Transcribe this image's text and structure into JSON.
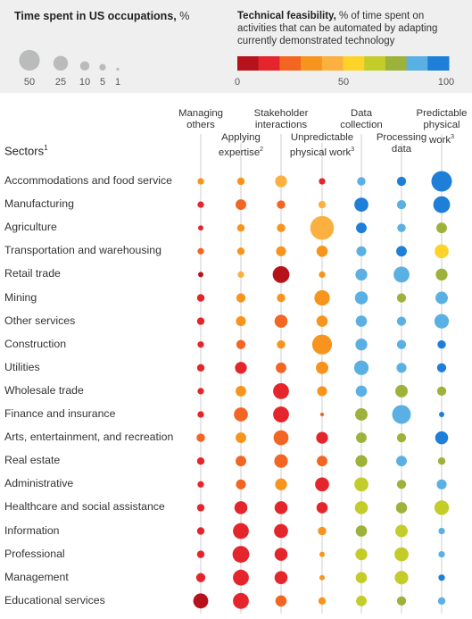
{
  "legend": {
    "size_title_bold": "Time spent in US occupations,",
    "size_title_rest": " %",
    "size_values": [
      50,
      25,
      10,
      5,
      1
    ],
    "color_title_bold": "Technical feasibility,",
    "color_title_rest": " % of time spent on activities that can be automated by adapting currently demonstrated technology",
    "color_steps": [
      "#b5121b",
      "#e4262c",
      "#f26522",
      "#f7941d",
      "#fbb040",
      "#fdd32a",
      "#c4cc2a",
      "#9cb23b",
      "#5bb0e3",
      "#1e7ed8"
    ],
    "scale_labels": [
      "0",
      "50",
      "100"
    ]
  },
  "sectors_header": "Sectors",
  "sectors_header_sup": "1",
  "columns": [
    {
      "label": "Managing\nothers",
      "sup": ""
    },
    {
      "label": "Applying\nexpertise",
      "sup": "2"
    },
    {
      "label": "Stakeholder\ninteractions",
      "sup": ""
    },
    {
      "label": "Unpredictable\nphysical work",
      "sup": "3"
    },
    {
      "label": "Data\ncollection",
      "sup": ""
    },
    {
      "label": "Processing\ndata",
      "sup": ""
    },
    {
      "label": "Predictable\nphysical\nwork",
      "sup": "3"
    }
  ],
  "chart_data": {
    "type": "bubble-matrix",
    "size_metric": "Time spent in US occupations, %",
    "color_metric": "Technical feasibility, %",
    "rows": [
      {
        "sector": "Accommodations and food service",
        "time": [
          3,
          4,
          10,
          3,
          5,
          6,
          30
        ],
        "feasibility": [
          30,
          35,
          45,
          10,
          80,
          90,
          100
        ]
      },
      {
        "sector": "Manufacturing",
        "time": [
          3,
          8,
          5,
          4,
          14,
          6,
          20
        ],
        "feasibility": [
          10,
          20,
          20,
          40,
          90,
          80,
          90
        ]
      },
      {
        "sector": "Agriculture",
        "time": [
          2,
          4,
          5,
          40,
          8,
          5,
          8
        ],
        "feasibility": [
          10,
          30,
          30,
          45,
          90,
          80,
          70
        ]
      },
      {
        "sector": "Transportation and warehousing",
        "time": [
          3,
          4,
          7,
          9,
          7,
          8,
          14
        ],
        "feasibility": [
          25,
          35,
          35,
          38,
          85,
          90,
          50
        ]
      },
      {
        "sector": "Retail trade",
        "time": [
          2,
          3,
          20,
          3,
          10,
          18,
          10
        ],
        "feasibility": [
          5,
          40,
          5,
          35,
          80,
          80,
          75
        ]
      },
      {
        "sector": "Mining",
        "time": [
          4,
          6,
          5,
          17,
          12,
          6,
          11
        ],
        "feasibility": [
          15,
          30,
          30,
          35,
          80,
          70,
          80
        ]
      },
      {
        "sector": "Other services",
        "time": [
          4,
          7,
          12,
          9,
          9,
          6,
          15
        ],
        "feasibility": [
          10,
          30,
          20,
          35,
          80,
          80,
          80
        ]
      },
      {
        "sector": "Construction",
        "time": [
          3,
          6,
          5,
          28,
          10,
          6,
          5
        ],
        "feasibility": [
          15,
          20,
          30,
          35,
          80,
          80,
          90
        ]
      },
      {
        "sector": "Utilities",
        "time": [
          4,
          10,
          8,
          11,
          15,
          7,
          6
        ],
        "feasibility": [
          10,
          15,
          20,
          30,
          80,
          80,
          90
        ]
      },
      {
        "sector": "Wholesale trade",
        "time": [
          3,
          8,
          18,
          7,
          9,
          11,
          6
        ],
        "feasibility": [
          10,
          30,
          15,
          38,
          80,
          70,
          75
        ]
      },
      {
        "sector": "Finance and insurance",
        "time": [
          3,
          14,
          18,
          1,
          11,
          25,
          2
        ],
        "feasibility": [
          10,
          20,
          15,
          25,
          70,
          80,
          95
        ]
      },
      {
        "sector": "Arts, entertainment, and recreation",
        "time": [
          5,
          8,
          16,
          10,
          8,
          6,
          12
        ],
        "feasibility": [
          20,
          30,
          25,
          15,
          70,
          75,
          90
        ]
      },
      {
        "sector": "Real estate",
        "time": [
          4,
          8,
          13,
          8,
          10,
          8,
          4
        ],
        "feasibility": [
          10,
          25,
          25,
          20,
          70,
          80,
          75
        ]
      },
      {
        "sector": "Administrative",
        "time": [
          3,
          7,
          10,
          14,
          14,
          6,
          7
        ],
        "feasibility": [
          15,
          20,
          30,
          15,
          60,
          75,
          80
        ]
      },
      {
        "sector": "Healthcare and social assistance",
        "time": [
          4,
          12,
          12,
          9,
          12,
          9,
          15
        ],
        "feasibility": [
          10,
          15,
          15,
          15,
          60,
          70,
          60
        ]
      },
      {
        "sector": "Information",
        "time": [
          4,
          18,
          14,
          5,
          9,
          11,
          3
        ],
        "feasibility": [
          10,
          18,
          15,
          30,
          70,
          60,
          80
        ]
      },
      {
        "sector": "Professional",
        "time": [
          4,
          20,
          12,
          2,
          10,
          14,
          3
        ],
        "feasibility": [
          10,
          15,
          15,
          30,
          60,
          60,
          80
        ]
      },
      {
        "sector": "Management",
        "time": [
          6,
          18,
          12,
          2,
          9,
          13,
          3
        ],
        "feasibility": [
          10,
          15,
          15,
          30,
          60,
          65,
          90
        ]
      },
      {
        "sector": "Educational services",
        "time": [
          16,
          18,
          9,
          4,
          8,
          6,
          4
        ],
        "feasibility": [
          5,
          15,
          20,
          35,
          60,
          75,
          80
        ]
      }
    ]
  }
}
